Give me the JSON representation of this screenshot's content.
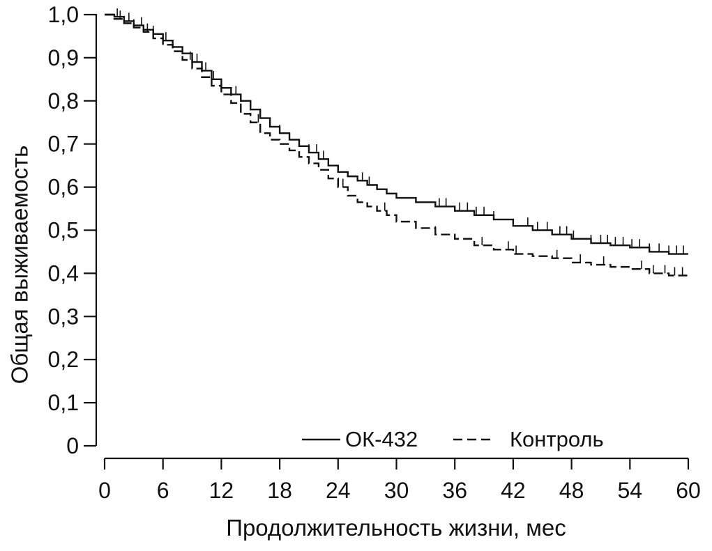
{
  "chart_data": {
    "type": "line",
    "title": "",
    "xlabel": "Продолжительность жизни, мес",
    "ylabel": "Общая выживаемость",
    "xlim": [
      0,
      60
    ],
    "ylim": [
      0,
      1.0
    ],
    "x_ticks": [
      0,
      6,
      12,
      18,
      24,
      30,
      36,
      42,
      48,
      54,
      60
    ],
    "x_tick_labels": [
      "0",
      "6",
      "12",
      "18",
      "24",
      "30",
      "36",
      "42",
      "48",
      "54",
      "60"
    ],
    "y_ticks": [
      0,
      0.1,
      0.2,
      0.3,
      0.4,
      0.5,
      0.6,
      0.7,
      0.8,
      0.9,
      1.0
    ],
    "y_tick_labels": [
      "0",
      "0,1",
      "0,2",
      "0,3",
      "0,4",
      "0,5",
      "0,6",
      "0,7",
      "0,8",
      "0,9",
      "1,0"
    ],
    "grid": false,
    "legend": {
      "placement": "bottom-right",
      "orientation": "horizontal"
    },
    "series": [
      {
        "name": "ОК-432",
        "style": "solid",
        "color": "#111111",
        "x": [
          0,
          1,
          2,
          3,
          4,
          5,
          6,
          7,
          8,
          9,
          10,
          11,
          12,
          13,
          14,
          15,
          16,
          17,
          18,
          19,
          20,
          21,
          22,
          23,
          24,
          25,
          26,
          27,
          28,
          29,
          30,
          32,
          34,
          36,
          38,
          40,
          42,
          44,
          46,
          48,
          50,
          52,
          54,
          56,
          58,
          60
        ],
        "y": [
          1.0,
          0.995,
          0.985,
          0.975,
          0.965,
          0.955,
          0.94,
          0.925,
          0.91,
          0.89,
          0.87,
          0.85,
          0.83,
          0.815,
          0.8,
          0.78,
          0.76,
          0.74,
          0.725,
          0.71,
          0.695,
          0.68,
          0.665,
          0.65,
          0.635,
          0.625,
          0.615,
          0.605,
          0.595,
          0.585,
          0.575,
          0.565,
          0.555,
          0.545,
          0.535,
          0.525,
          0.51,
          0.5,
          0.49,
          0.48,
          0.47,
          0.465,
          0.46,
          0.45,
          0.445,
          0.445
        ],
        "censor_x": [
          1.3,
          2.5,
          3.8,
          5.0,
          6.3,
          9.5,
          10.4,
          11.2,
          13.5,
          18.0,
          21.0,
          21.8,
          22.5,
          26.5,
          27.2,
          34.4,
          35.1,
          36.5,
          37.3,
          38.2,
          39.0,
          40.0,
          43.5,
          44.5,
          45.5,
          46.8,
          47.5,
          48.2,
          50.0,
          51.0,
          51.7,
          52.5,
          53.3,
          54.2,
          55.0,
          56.0,
          57.0,
          58.0,
          58.8,
          59.5
        ]
      },
      {
        "name": "Контроль",
        "style": "dashed",
        "color": "#111111",
        "x": [
          0,
          1,
          2,
          3,
          4,
          5,
          6,
          7,
          8,
          9,
          10,
          11,
          12,
          13,
          14,
          15,
          16,
          17,
          18,
          19,
          20,
          21,
          22,
          23,
          24,
          25,
          26,
          27,
          28,
          29,
          30,
          32,
          34,
          36,
          38,
          40,
          42,
          44,
          46,
          48,
          50,
          52,
          54,
          56,
          58,
          60
        ],
        "y": [
          1.0,
          0.99,
          0.98,
          0.97,
          0.96,
          0.945,
          0.93,
          0.915,
          0.895,
          0.875,
          0.855,
          0.835,
          0.815,
          0.795,
          0.77,
          0.75,
          0.725,
          0.71,
          0.7,
          0.685,
          0.67,
          0.655,
          0.64,
          0.62,
          0.6,
          0.58,
          0.565,
          0.555,
          0.545,
          0.535,
          0.52,
          0.505,
          0.49,
          0.48,
          0.465,
          0.455,
          0.445,
          0.44,
          0.435,
          0.425,
          0.42,
          0.415,
          0.41,
          0.4,
          0.395,
          0.39
        ],
        "censor_x": [
          1.6,
          3.0,
          4.4,
          8.8,
          15.8,
          24.5,
          28.8,
          34.0,
          38.8,
          41.5,
          42.3,
          46.5,
          48.9,
          51.3,
          55.2,
          56.4,
          57.6,
          58.6,
          59.4
        ]
      }
    ]
  }
}
